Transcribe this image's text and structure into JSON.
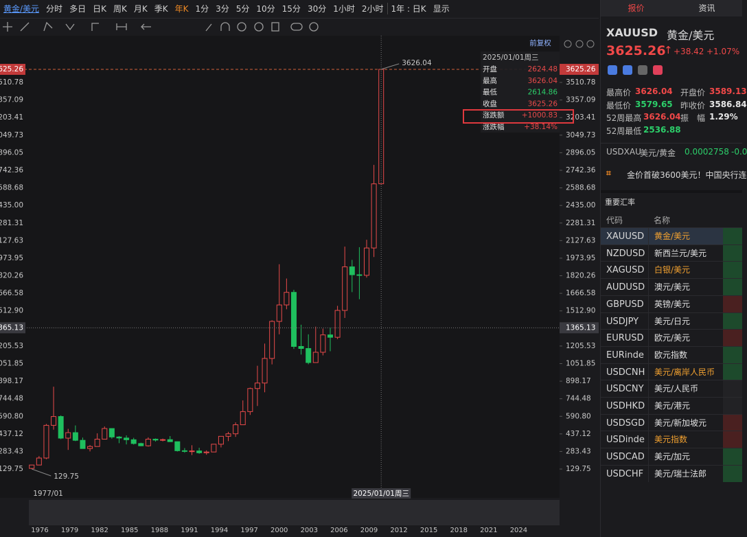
{
  "toolbar": {
    "symbol": "黄金/美元",
    "periods": [
      "分时",
      "多日",
      "日K",
      "周K",
      "月K",
      "季K",
      "年K",
      "1分",
      "3分",
      "5分",
      "10分",
      "15分",
      "30分",
      "1小时",
      "2小时"
    ],
    "active": "年K",
    "range": "1年 : 日K",
    "display": "显示"
  },
  "chart_data": {
    "type": "candlestick",
    "adjust": "前复权",
    "up_color": "#e84a4a",
    "down_color": "#1fbf5e",
    "x": [
      1977,
      1978,
      1979,
      1980,
      1981,
      1982,
      1983,
      1984,
      1985,
      1986,
      1987,
      1988,
      1989,
      1990,
      1991,
      1992,
      1993,
      1994,
      1995,
      1996,
      1997,
      1998,
      1999,
      2000,
      2001,
      2002,
      2003,
      2004,
      2005,
      2006,
      2007,
      2008,
      2009,
      2010,
      2011,
      2012,
      2013,
      2014,
      2015,
      2016,
      2017,
      2018,
      2019,
      2020,
      2021,
      2022,
      2023,
      2024,
      2025
    ],
    "open": [
      135,
      165,
      226,
      512,
      589,
      400,
      448,
      381,
      309,
      327,
      391,
      484,
      410,
      401,
      386,
      353,
      333,
      391,
      383,
      387,
      369,
      290,
      288,
      288,
      272,
      279,
      347,
      416,
      438,
      517,
      632,
      834,
      882,
      1097,
      1421,
      1565,
      1675,
      1202,
      1184,
      1061,
      1151,
      1303,
      1282,
      1517,
      1898,
      1829,
      1824,
      2063,
      2624.48
    ],
    "high": [
      167,
      243,
      524,
      850,
      599,
      481,
      511,
      405,
      340,
      442,
      502,
      484,
      418,
      424,
      403,
      360,
      407,
      397,
      396,
      418,
      369,
      313,
      338,
      316,
      293,
      349,
      417,
      455,
      538,
      730,
      842,
      1033,
      1227,
      1431,
      1921,
      1796,
      1697,
      1392,
      1308,
      1375,
      1358,
      1366,
      1557,
      2075,
      1959,
      2070,
      2135,
      2790,
      3626.04
    ],
    "low": [
      129.75,
      165,
      216,
      474,
      391,
      297,
      374,
      307,
      284,
      326,
      390,
      395,
      356,
      345,
      344,
      330,
      326,
      370,
      372,
      367,
      283,
      273,
      252,
      263,
      255,
      277,
      319,
      374,
      411,
      517,
      603,
      681,
      801,
      1045,
      1308,
      1527,
      1180,
      1131,
      1046,
      1062,
      1124,
      1160,
      1266,
      1451,
      1677,
      1615,
      1804,
      1984,
      2614.86
    ],
    "close": [
      165,
      226,
      512,
      589,
      400,
      448,
      381,
      309,
      327,
      391,
      484,
      410,
      401,
      386,
      353,
      333,
      391,
      383,
      387,
      369,
      290,
      288,
      288,
      272,
      279,
      347,
      416,
      438,
      517,
      632,
      834,
      882,
      1097,
      1421,
      1565,
      1675,
      1202,
      1184,
      1061,
      1151,
      1303,
      1282,
      1517,
      1898,
      1829,
      1824,
      2063,
      2624,
      3625.26
    ],
    "xlim": [
      1976.6,
      2049.5
    ],
    "ylim": [
      -32.2,
      3781.3
    ],
    "yticks": [
      129.75,
      283.43,
      437.12,
      {
        "value": 590.8,
        "label": "590.80"
      },
      744.48,
      898.17,
      1051.85,
      1205.53,
      {
        "value": 1512.9,
        "label": "1512.90"
      },
      1666.58,
      1820.26,
      1973.95,
      2127.63,
      2281.31,
      {
        "value": 2435,
        "label": "2435.00"
      },
      2588.68,
      2742.36,
      2896.05,
      3049.73,
      3203.41,
      3357.09,
      3510.78
    ],
    "start_label": "1977/01",
    "max_label": 3626.04,
    "min_label": 129.75,
    "last_price": 3625.26,
    "crosshair": {
      "x": 2025,
      "value": 1365.13,
      "x_label": "2025/01/01周三"
    },
    "tooltip": {
      "date": "2025/01/01周三",
      "rows": [
        {
          "label": "开盘",
          "value": 2624.48
        },
        {
          "label": "最高",
          "value": 3626.04
        },
        {
          "label": "最低",
          "value": 2614.86
        },
        {
          "label": "收盘",
          "value": 3625.26
        },
        {
          "label": "涨跌额",
          "value": "+1000.83"
        },
        {
          "label": "涨跌幅",
          "value": "+38.14%"
        }
      ]
    },
    "navigator_xlim": [
      1974.9,
      2028.1
    ],
    "navigator_years": [
      1976,
      1979,
      1982,
      1985,
      1988,
      1991,
      1994,
      1997,
      2000,
      2003,
      2006,
      2009,
      2012,
      2015,
      2018,
      2021,
      2024
    ]
  },
  "side": {
    "tabs": [
      "报价",
      "资讯"
    ],
    "code": "XAUUSD",
    "name": "黄金/美元",
    "price": "3625.26",
    "change": "+38.42",
    "change_pct": "+1.07%",
    "stats": [
      {
        "label": "最高价",
        "value": "3626.04",
        "color": "#f04848"
      },
      {
        "label": "开盘价",
        "value": "3589.13",
        "color": "#f04848"
      },
      {
        "label": "最低价",
        "value": "3579.65",
        "color": "#2ccf6a"
      },
      {
        "label": "昨收价",
        "value": "3586.84",
        "color": "#e6e6e6"
      },
      {
        "label": "52周最高",
        "value": "3626.04",
        "color": "#f04848"
      },
      {
        "label": "振　幅",
        "value": "1.29%",
        "color": "#e6e6e6"
      },
      {
        "label": "52周最低",
        "value": "2536.88",
        "color": "#2ccf6a"
      }
    ],
    "cross": {
      "code": "USDXAU",
      "name": "美元/黄金",
      "value": "0.0002758",
      "change": "-0.0"
    },
    "news": "金价首破3600美元！中国央行连",
    "section": "重要汇率",
    "headers": [
      "代码",
      "名称"
    ],
    "rows": [
      {
        "code": "XAUUSD",
        "name": "黄金/美元",
        "orange": true,
        "color": "#1d4a2c"
      },
      {
        "code": "NZDUSD",
        "name": "新西兰元/美元",
        "orange": false,
        "color": "#1d4a2c"
      },
      {
        "code": "XAGUSD",
        "name": "白银/美元",
        "orange": true,
        "color": "#1d4a2c"
      },
      {
        "code": "AUDUSD",
        "name": "澳元/美元",
        "orange": false,
        "color": "#1d4a2c"
      },
      {
        "code": "GBPUSD",
        "name": "英镑/美元",
        "orange": false,
        "color": "#4a2020"
      },
      {
        "code": "USDJPY",
        "name": "美元/日元",
        "orange": false,
        "color": "#1d4a2c"
      },
      {
        "code": "EURUSD",
        "name": "欧元/美元",
        "orange": false,
        "color": "#4a2020"
      },
      {
        "code": "EURinde",
        "name": "欧元指数",
        "orange": false,
        "color": "#1d4a2c"
      },
      {
        "code": "USDCNH",
        "name": "美元/离岸人民币",
        "orange": true,
        "color": "#1d4a2c"
      },
      {
        "code": "USDCNY",
        "name": "美元/人民币",
        "orange": false,
        "color": "#222225"
      },
      {
        "code": "USDHKD",
        "name": "美元/港元",
        "orange": false,
        "color": "#222225"
      },
      {
        "code": "USDSGD",
        "name": "美元/新加坡元",
        "orange": false,
        "color": "#4a2020"
      },
      {
        "code": "USDinde",
        "name": "美元指数",
        "orange": true,
        "color": "#4a2020"
      },
      {
        "code": "USDCAD",
        "name": "美元/加元",
        "orange": false,
        "color": "#1d4a2c"
      },
      {
        "code": "USDCHF",
        "name": "美元/瑞士法郎",
        "orange": false,
        "color": "#1d4a2c"
      }
    ]
  }
}
